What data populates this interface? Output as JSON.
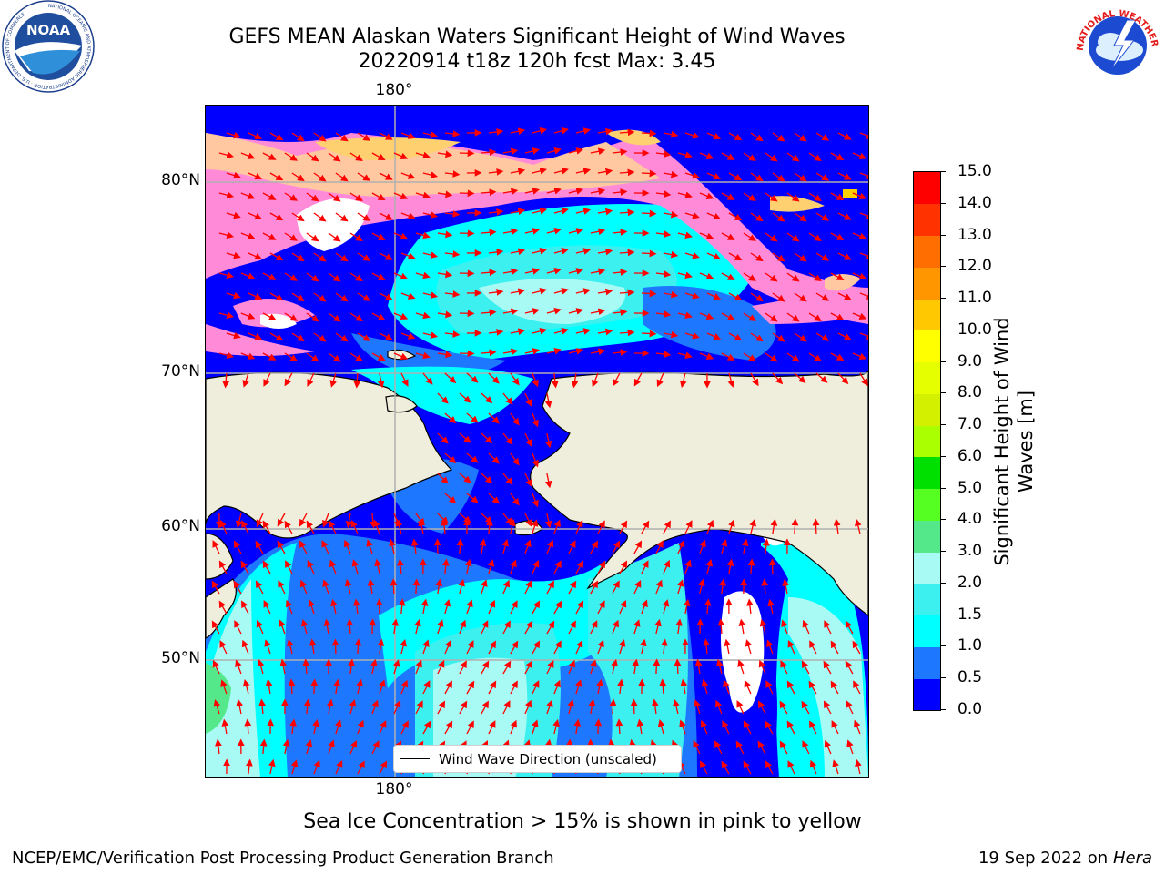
{
  "title": {
    "line1": "GEFS MEAN Alaskan Waters Significant Height of Wind Waves",
    "line2": "20220914 t18z 120h fcst   Max: 3.45"
  },
  "axes": {
    "lon_top": "180°",
    "lon_bottom": "180°",
    "lat_labels": [
      "80°N",
      "70°N",
      "60°N",
      "50°N"
    ]
  },
  "legend": {
    "label": "Wind Wave Direction (unscaled)"
  },
  "colorbar": {
    "title": "Significant Height of Wind Waves [m]",
    "ticks": [
      "0.0",
      "0.5",
      "1.0",
      "1.5",
      "2.0",
      "3.0",
      "4.0",
      "5.0",
      "6.0",
      "7.0",
      "8.0",
      "9.0",
      "10.0",
      "11.0",
      "12.0",
      "13.0",
      "14.0",
      "15.0"
    ],
    "colors": [
      "#0000ff",
      "#1e78ff",
      "#00ffff",
      "#3cf0f0",
      "#a8fbf5",
      "#55e88a",
      "#55ff22",
      "#00e000",
      "#aaff00",
      "#d2f000",
      "#e6ff00",
      "#ffff00",
      "#ffc800",
      "#ff9600",
      "#ff6e00",
      "#ff3200",
      "#ff0000"
    ]
  },
  "footnote": "Sea Ice Concentration > 15% is shown in pink to yellow",
  "credit_left": "NCEP/EMC/Verification Post Processing Product Generation Branch",
  "credit_right_date": "19 Sep 2022 on",
  "credit_right_host": "Hera",
  "logos": {
    "noaa_text": "NOAA",
    "noaa_ring": "NATIONAL OCEANIC AND ATMOSPHERIC ADMINISTRATION · U.S. DEPARTMENT OF COMMERCE",
    "nws_ring": "NATIONAL WEATHER SERVICE"
  },
  "map_colors": {
    "land": "#efeedc",
    "arrow": "#ff0000",
    "grid": "#b0b0b0"
  }
}
